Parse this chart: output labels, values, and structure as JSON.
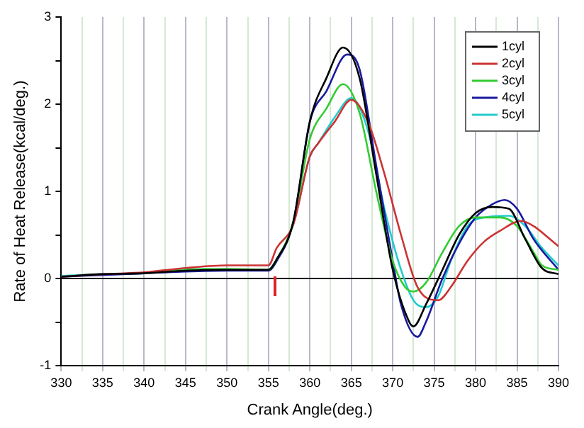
{
  "chart_data": {
    "type": "line",
    "xlabel": "Crank Angle(deg.)",
    "ylabel": "Rate of Heat Release(kcal/deg.)",
    "xlim": [
      330,
      390
    ],
    "ylim": [
      -1,
      3
    ],
    "xticks": [
      330,
      {
        "value": 332.5,
        "label": null
      },
      335,
      {
        "value": 337.5,
        "label": null
      },
      340,
      {
        "value": 342.5,
        "label": null
      },
      345,
      {
        "value": 347.5,
        "label": null
      },
      350,
      {
        "value": 352.5,
        "label": null
      },
      355,
      {
        "value": 357.5,
        "label": null
      },
      360,
      {
        "value": 362.5,
        "label": null
      },
      365,
      {
        "value": 367.5,
        "label": null
      },
      370,
      {
        "value": 372.5,
        "label": null
      },
      375,
      {
        "value": 377.5,
        "label": null
      },
      380,
      {
        "value": 382.5,
        "label": null
      },
      385,
      {
        "value": 387.5,
        "label": null
      },
      390
    ],
    "yticks": [
      -1,
      {
        "value": -0.5,
        "label": null
      },
      0,
      {
        "value": 0.5,
        "label": null
      },
      1,
      {
        "value": 1.5,
        "label": null
      },
      2,
      {
        "value": 2.5,
        "label": null
      },
      3
    ],
    "grid": "x",
    "legend": "top right",
    "marker": "none",
    "line_style": "solid",
    "ref_lines": [
      {
        "axis": "y",
        "value": 0,
        "color": "#000000"
      }
    ],
    "series": [
      {
        "name": "1cyl",
        "color": "#000000",
        "x": [
          330,
          335,
          340,
          345,
          350,
          355,
          356,
          358,
          360,
          362,
          364,
          366,
          368,
          370,
          372,
          372.5,
          374,
          376,
          378,
          380,
          382,
          384,
          386,
          388,
          390
        ],
        "values": [
          0.02,
          0.05,
          0.06,
          0.09,
          0.1,
          0.1,
          0.22,
          0.65,
          1.8,
          2.3,
          2.65,
          2.3,
          1.2,
          0.1,
          -0.5,
          -0.55,
          -0.3,
          0.1,
          0.5,
          0.75,
          0.82,
          0.8,
          0.45,
          0.12,
          0.05
        ]
      },
      {
        "name": "2cyl",
        "color": "#cc3333",
        "x": [
          330,
          335,
          340,
          345,
          350,
          355,
          356,
          358,
          360,
          361,
          363,
          365,
          367,
          369,
          371,
          373,
          375.5,
          377,
          379,
          381,
          383,
          385.5,
          387,
          389,
          390
        ],
        "values": [
          0.02,
          0.05,
          0.07,
          0.12,
          0.15,
          0.15,
          0.35,
          0.62,
          1.4,
          1.55,
          1.8,
          2.05,
          1.8,
          1.2,
          0.5,
          -0.1,
          -0.25,
          -0.1,
          0.2,
          0.42,
          0.55,
          0.66,
          0.6,
          0.45,
          0.37
        ]
      },
      {
        "name": "3cyl",
        "color": "#33cc33",
        "x": [
          340,
          345,
          350,
          355,
          356,
          358,
          360,
          362,
          364,
          366,
          368,
          370,
          371.5,
          372.5,
          374,
          376,
          378,
          380,
          383,
          385,
          387,
          388,
          390
        ],
        "values": [
          0.06,
          0.1,
          0.11,
          0.1,
          0.22,
          0.65,
          1.6,
          1.95,
          2.23,
          1.9,
          1.0,
          0.2,
          -0.1,
          -0.15,
          -0.05,
          0.3,
          0.6,
          0.7,
          0.7,
          0.6,
          0.3,
          0.15,
          0.1
        ]
      },
      {
        "name": "4cyl",
        "color": "#1a1aa0",
        "x": [
          330,
          335,
          340,
          345,
          350,
          355,
          356,
          358,
          360,
          362,
          364.5,
          366,
          368,
          370,
          371,
          373,
          374,
          376,
          378,
          380,
          382,
          383.5,
          385,
          387,
          390
        ],
        "values": [
          0.02,
          0.04,
          0.06,
          0.08,
          0.09,
          0.09,
          0.2,
          0.65,
          1.8,
          2.15,
          2.57,
          2.4,
          1.3,
          0.2,
          -0.3,
          -0.67,
          -0.5,
          0.0,
          0.4,
          0.7,
          0.85,
          0.9,
          0.8,
          0.45,
          0.1
        ]
      },
      {
        "name": "5cyl",
        "color": "#22cccc",
        "x": [
          330,
          335,
          340,
          345,
          350,
          355,
          356,
          358,
          360,
          361,
          363,
          365,
          367,
          369,
          371,
          372.5,
          374,
          375.5,
          377,
          379,
          381,
          384,
          386,
          388,
          390
        ],
        "values": [
          0.03,
          0.05,
          0.06,
          0.11,
          0.1,
          0.1,
          0.22,
          0.62,
          1.4,
          1.55,
          1.85,
          2.07,
          1.7,
          0.8,
          0.1,
          -0.25,
          -0.33,
          -0.2,
          0.2,
          0.6,
          0.7,
          0.72,
          0.6,
          0.35,
          0.15
        ]
      }
    ]
  }
}
